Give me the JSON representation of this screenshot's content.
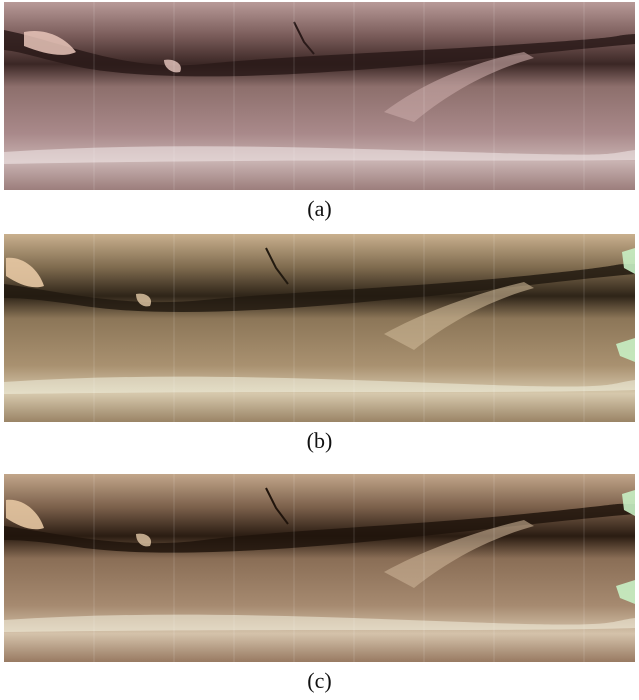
{
  "figure": {
    "panels": [
      {
        "caption": "(a)",
        "tone": "pinkish"
      },
      {
        "caption": "(b)",
        "tone": "tan"
      },
      {
        "caption": "(c)",
        "tone": "warm"
      }
    ]
  },
  "colors": {
    "pinkish": {
      "base": "#9a7a78",
      "light": "#c4a8a4",
      "dark": "#3a2624",
      "highlight": "#efe4e6"
    },
    "tan": {
      "base": "#9a8468",
      "light": "#c9b596",
      "dark": "#2e2418",
      "highlight": "#eef0e0"
    },
    "warm": {
      "base": "#93765e",
      "light": "#c2a78a",
      "dark": "#2c1e14",
      "highlight": "#f0ece0"
    }
  }
}
